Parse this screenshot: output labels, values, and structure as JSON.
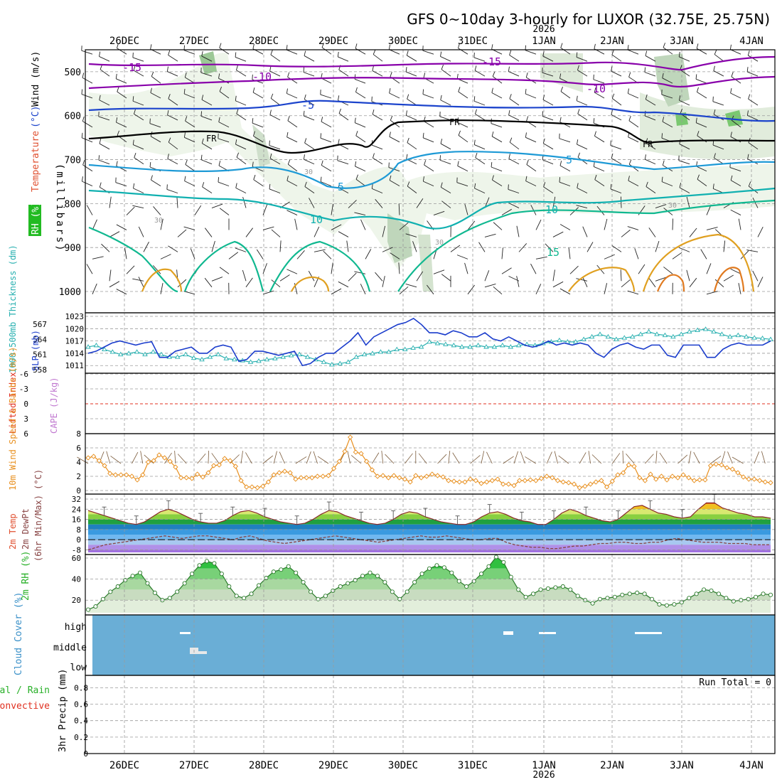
{
  "title": "GFS 0~10day 3-hourly for LUXOR (32.75E, 25.75N)",
  "year_label": "2026",
  "dates": [
    "26DEC",
    "27DEC",
    "28DEC",
    "29DEC",
    "30DEC",
    "31DEC",
    "1JAN",
    "2JAN",
    "3JAN",
    "4JAN"
  ],
  "colors": {
    "frame": "#000000",
    "grid": "#9a9a9a",
    "temp_cold": "#8800aa",
    "temp_blue": "#1c44cc",
    "temp_lightblue": "#1e9ad6",
    "temp_teal": "#10b0b0",
    "temp_green": "#10b890",
    "temp_orange": "#e0a020",
    "slp": "#1a3ccc",
    "thickness": "#28b0b0",
    "wind": "#e89020",
    "rh": "#28b028",
    "cloud": "#6aaed6",
    "li": "#e03020",
    "cape": "#c078d0"
  },
  "chart_data": [
    {
      "panel": "upper-air",
      "type": "contour",
      "ylabel_parts": [
        "RH (%)",
        "Temperature",
        "(°C)",
        "Wind (m/s)"
      ],
      "yaxis_units": "(millibars)",
      "yticks": [
        "500",
        "600",
        "700",
        "800",
        "900",
        "1000"
      ],
      "ylim": [
        450,
        1000
      ],
      "isotherms": [
        {
          "label": "-15",
          "level_mb": 480,
          "color": "temp_cold"
        },
        {
          "label": "-10",
          "level_mb": 520,
          "color": "temp_cold"
        },
        {
          "label": "-5",
          "level_mb": 590,
          "color": "temp_blue"
        },
        {
          "label": "FR",
          "level_mb": 650,
          "color": "frame"
        },
        {
          "label": "5",
          "level_mb": 710,
          "color": "temp_lightblue"
        },
        {
          "label": "10",
          "level_mb": 800,
          "color": "temp_teal"
        },
        {
          "label": "15",
          "level_mb": 880,
          "color": "temp_green"
        }
      ],
      "rh_labels": [
        "30",
        "30",
        "30",
        "30"
      ]
    },
    {
      "panel": "slp-thickness",
      "type": "line",
      "ylabel_left": "1000-500mb Thickness (dm)",
      "ylabel_right": "SLP (mb)",
      "slp_ticks": [
        "1023",
        "1020",
        "1017",
        "1014",
        "1011"
      ],
      "thickness_ticks": [
        "567",
        "564",
        "561",
        "558"
      ],
      "ylim_slp": [
        1010,
        1023
      ],
      "series": [
        {
          "name": "SLP (mb)",
          "values": [
            1014,
            1014.5,
            1015.5,
            1016.5,
            1017,
            1016.5,
            1016,
            1016.5,
            1016.8,
            1013,
            1013,
            1014.5,
            1015,
            1015.5,
            1014,
            1014,
            1015.5,
            1016,
            1015.5,
            1012,
            1012.5,
            1014.5,
            1014.5,
            1014,
            1013.5,
            1014,
            1014.5,
            1011,
            1011.5,
            1013,
            1014,
            1014,
            1015.5,
            1017,
            1019,
            1016,
            1018,
            1019,
            1020,
            1021,
            1021.5,
            1022.5,
            1021,
            1019,
            1019,
            1018.5,
            1019.5,
            1019,
            1018,
            1018,
            1019,
            1017.5,
            1017,
            1018,
            1017,
            1016,
            1015.5,
            1016,
            1017,
            1016,
            1016.5,
            1016,
            1016.5,
            1016,
            1014,
            1013,
            1015,
            1016,
            1016.5,
            1015.5,
            1015,
            1016,
            1016,
            1013.5,
            1013,
            1016,
            1016,
            1016,
            1013,
            1013,
            1015,
            1016,
            1016.5,
            1016,
            1016,
            1016,
            1017
          ]
        },
        {
          "name": "Thickness (dm)",
          "values": [
            562.5,
            562.8,
            562,
            561.5,
            561,
            561.2,
            561.5,
            561,
            561.5,
            561,
            560.5,
            560.5,
            561,
            560.3,
            560,
            560.5,
            561,
            560.2,
            560,
            559.8,
            559.5,
            559.7,
            560,
            560.2,
            560.5,
            560.8,
            561,
            560.5,
            560,
            559.5,
            559,
            559.2,
            559.5,
            560.5,
            561,
            561.2,
            561.5,
            561.5,
            562,
            562,
            562.3,
            562.5,
            563.5,
            563.2,
            563,
            562.8,
            562.5,
            562.5,
            562.8,
            562.5,
            562.5,
            562.8,
            562.5,
            562.8,
            563,
            562.8,
            563.2,
            563.5,
            563.8,
            563.5,
            563.5,
            564,
            564.5,
            565,
            564.5,
            564,
            564.3,
            564.5,
            565,
            565.5,
            565,
            564.8,
            564.5,
            565,
            565.5,
            565.8,
            566,
            565.5,
            565,
            564.5,
            564.8,
            564.5,
            564.3,
            564.2,
            564
          ]
        }
      ]
    },
    {
      "panel": "stability",
      "type": "line",
      "ylabel_left": "Lifted Index",
      "ylabel_right": "CAPE (J/kg)",
      "yticks": [
        "-6",
        "-3",
        "0",
        "3",
        "6"
      ],
      "ylim": [
        -6,
        6
      ],
      "series": [
        {
          "name": "Lifted Index",
          "values": [
            0
          ]
        }
      ]
    },
    {
      "panel": "surface-wind",
      "type": "line",
      "ylabel": "10m Wind Speed & Barbs (m/s)",
      "yticks": [
        "8",
        "6",
        "4",
        "2",
        "0"
      ],
      "ylim": [
        0,
        8
      ],
      "series": [
        {
          "name": "10m Wind Speed (m/s)",
          "values": [
            4.6,
            4.8,
            4.2,
            3.5,
            2.4,
            2.2,
            2.2,
            2.2,
            2,
            1.5,
            2.2,
            4,
            4.2,
            5,
            4.6,
            4.1,
            3.3,
            1.8,
            1.8,
            1.7,
            2.3,
            1.9,
            2.5,
            3.5,
            3.6,
            4.5,
            4.2,
            3.4,
            1.4,
            0.5,
            0.5,
            0.4,
            0.6,
            1.2,
            2.2,
            2.5,
            2.7,
            2.5,
            1.6,
            1.8,
            1.8,
            1.8,
            2,
            2,
            2.1,
            3.1,
            4.1,
            5.5,
            7.5,
            5.4,
            5.2,
            4.1,
            2.9,
            2,
            2.1,
            1.8,
            2.1,
            1.8,
            1.6,
            1.2,
            2.1,
            1.8,
            2,
            2.3,
            2.1,
            1.9,
            1.4,
            1.3,
            1.2,
            1.2,
            1.6,
            1.4,
            1,
            1.2,
            1.4,
            1.6,
            0.9,
            0.9,
            0.7,
            1.4,
            1.4,
            1.5,
            1.4,
            1.7,
            2,
            1.8,
            1.4,
            1.2,
            1.1,
            0.9,
            0.4,
            0.6,
            0.9,
            1.2,
            1.4,
            0.5,
            1.3,
            2.2,
            2.5,
            3.6,
            3.4,
            1.8,
            1.4,
            2.3,
            1.6,
            2,
            1.5,
            2,
            1.8,
            2.2,
            1.8,
            1.4,
            1.5,
            1.5,
            3.5,
            3.7,
            3.6,
            3.2,
            3,
            2.5,
            1.9,
            1.6,
            1.6,
            1.4,
            1.2,
            1.1
          ]
        }
      ]
    },
    {
      "panel": "temperature",
      "type": "area",
      "ylabel_parts": [
        "2m Temp",
        "2m DewPt",
        "(6hr Min/Max) (°C)"
      ],
      "yticks": [
        "32",
        "24",
        "16",
        "8",
        "0",
        "-8"
      ],
      "ylim": [
        -10,
        32
      ],
      "series": [
        {
          "name": "2m Temp (°C)",
          "values": [
            23,
            21,
            19,
            17,
            15,
            13,
            12,
            14,
            18,
            22,
            24,
            22,
            19,
            16,
            14,
            13,
            13,
            15,
            19,
            22,
            23,
            21,
            18,
            16,
            14,
            13,
            12,
            13,
            16,
            20,
            23,
            22,
            19,
            17,
            15,
            13,
            12,
            13,
            16,
            20,
            22,
            21,
            18,
            16,
            14,
            13,
            12,
            12,
            14,
            18,
            21,
            22,
            20,
            17,
            15,
            14,
            12,
            12,
            16,
            21,
            24,
            22,
            19,
            17,
            15,
            14,
            16,
            21,
            26,
            27,
            24,
            21,
            20,
            18,
            17,
            18,
            24,
            29,
            29,
            25,
            23,
            21,
            20,
            18,
            18,
            17
          ]
        },
        {
          "name": "2m DewPt (°C)",
          "values": [
            -8,
            -6,
            -4,
            -3,
            -2,
            -1,
            0,
            1,
            2,
            3,
            2,
            1,
            2,
            3,
            3,
            2,
            1,
            0,
            2,
            3,
            1,
            -1,
            -2,
            -3,
            -2,
            -1,
            0,
            1,
            2,
            3,
            2,
            1,
            0,
            -1,
            -2,
            -1,
            0,
            1,
            2,
            3,
            2,
            2,
            3,
            2,
            1,
            0,
            0,
            1,
            1,
            -2,
            -4,
            -5,
            -6,
            -6,
            -7,
            -7,
            -6,
            -5,
            -5,
            -4,
            -3,
            -3,
            -2,
            -2,
            -3,
            -3,
            -2,
            -2,
            0,
            1,
            0,
            -1,
            -2,
            -2,
            -2,
            -3,
            -3,
            -3,
            -4,
            -4,
            -4
          ]
        }
      ]
    },
    {
      "panel": "humidity",
      "type": "area",
      "ylabel": "2m RH (%)",
      "yticks": [
        "60",
        "40",
        "20"
      ],
      "ylim": [
        8,
        62
      ],
      "series": [
        {
          "name": "2m RH (%)",
          "values": [
            11,
            14,
            21,
            28,
            33,
            39,
            43,
            46,
            36,
            27,
            20,
            22,
            28,
            36,
            45,
            53,
            57,
            55,
            45,
            33,
            24,
            22,
            26,
            34,
            41,
            47,
            49,
            52,
            46,
            37,
            28,
            21,
            24,
            29,
            33,
            36,
            39,
            43,
            46,
            43,
            37,
            28,
            21,
            28,
            37,
            45,
            50,
            53,
            51,
            46,
            38,
            33,
            38,
            45,
            52,
            61,
            56,
            42,
            30,
            23,
            26,
            30,
            31,
            32,
            33,
            30,
            24,
            20,
            17,
            21,
            22,
            23,
            25,
            26,
            27,
            26,
            21,
            16,
            15,
            16,
            18,
            22,
            26,
            30,
            29,
            26,
            22,
            19,
            20,
            21,
            23,
            26,
            25
          ]
        }
      ]
    },
    {
      "panel": "cloud",
      "type": "heatmap",
      "ylabel": "Cloud Cover (%)",
      "levels": [
        "high",
        "middle",
        "low"
      ],
      "series": [
        {
          "name": "Cloud Cover (%)",
          "values": []
        }
      ]
    },
    {
      "panel": "precip",
      "type": "bar",
      "ylabel_parts": [
        "Total / Rain",
        "Convective",
        "3hr Precip (mm)"
      ],
      "yticks": [
        "0.8",
        "0.6",
        "0.4",
        "0.2",
        "0"
      ],
      "ylim": [
        0,
        0.95
      ],
      "run_total": "Run Total = 0",
      "series": [
        {
          "name": "3hr Precip (mm)",
          "values": []
        }
      ]
    }
  ]
}
